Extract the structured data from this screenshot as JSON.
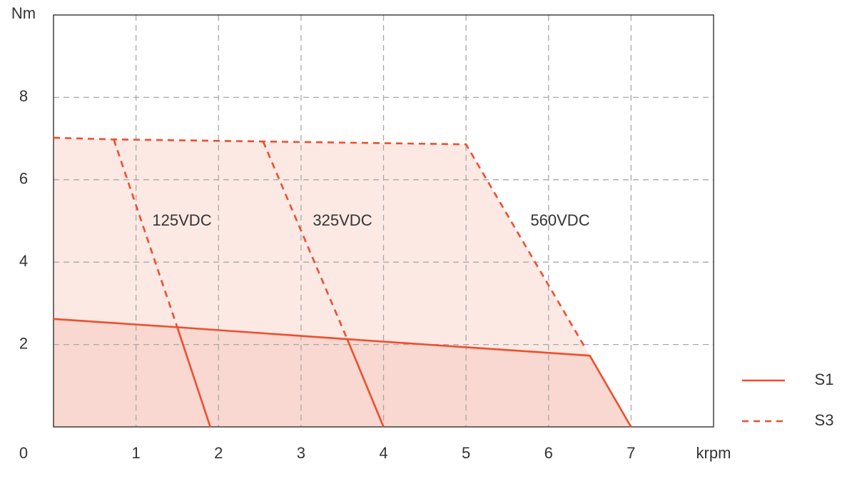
{
  "chart_data": {
    "type": "line",
    "y_label": "Nm",
    "x_label": "krpm",
    "xlim": [
      0,
      8
    ],
    "ylim": [
      0,
      10
    ],
    "xticks": [
      1,
      2,
      3,
      4,
      5,
      6,
      7
    ],
    "yticks": [
      0,
      2,
      4,
      6,
      8
    ],
    "grid": true,
    "legend": "right",
    "series": [
      {
        "name": "S1",
        "color": "#ee4e2e",
        "dash": false,
        "area_color": "#f8d8d0",
        "x": [
          0,
          1.5,
          3.56,
          6.5,
          7,
          null,
          1.5,
          1.9,
          null,
          3.56,
          4.0
        ],
        "values": [
          2.62,
          2.42,
          2.13,
          1.73,
          0,
          null,
          2.42,
          0,
          null,
          2.13,
          0
        ]
      },
      {
        "name": "S3",
        "color": "#ee4e2e",
        "dash": true,
        "area_color": "#fce9e4",
        "x": [
          0,
          0.73,
          2.54,
          5,
          6.45,
          null,
          0.73,
          1.5,
          null,
          2.54,
          3.56
        ],
        "values": [
          7.02,
          6.98,
          6.93,
          6.86,
          1.9,
          null,
          6.98,
          2.42,
          null,
          6.93,
          2.13
        ]
      }
    ],
    "annotations": [
      "125VDC",
      "325VDC",
      "560VDC"
    ]
  }
}
